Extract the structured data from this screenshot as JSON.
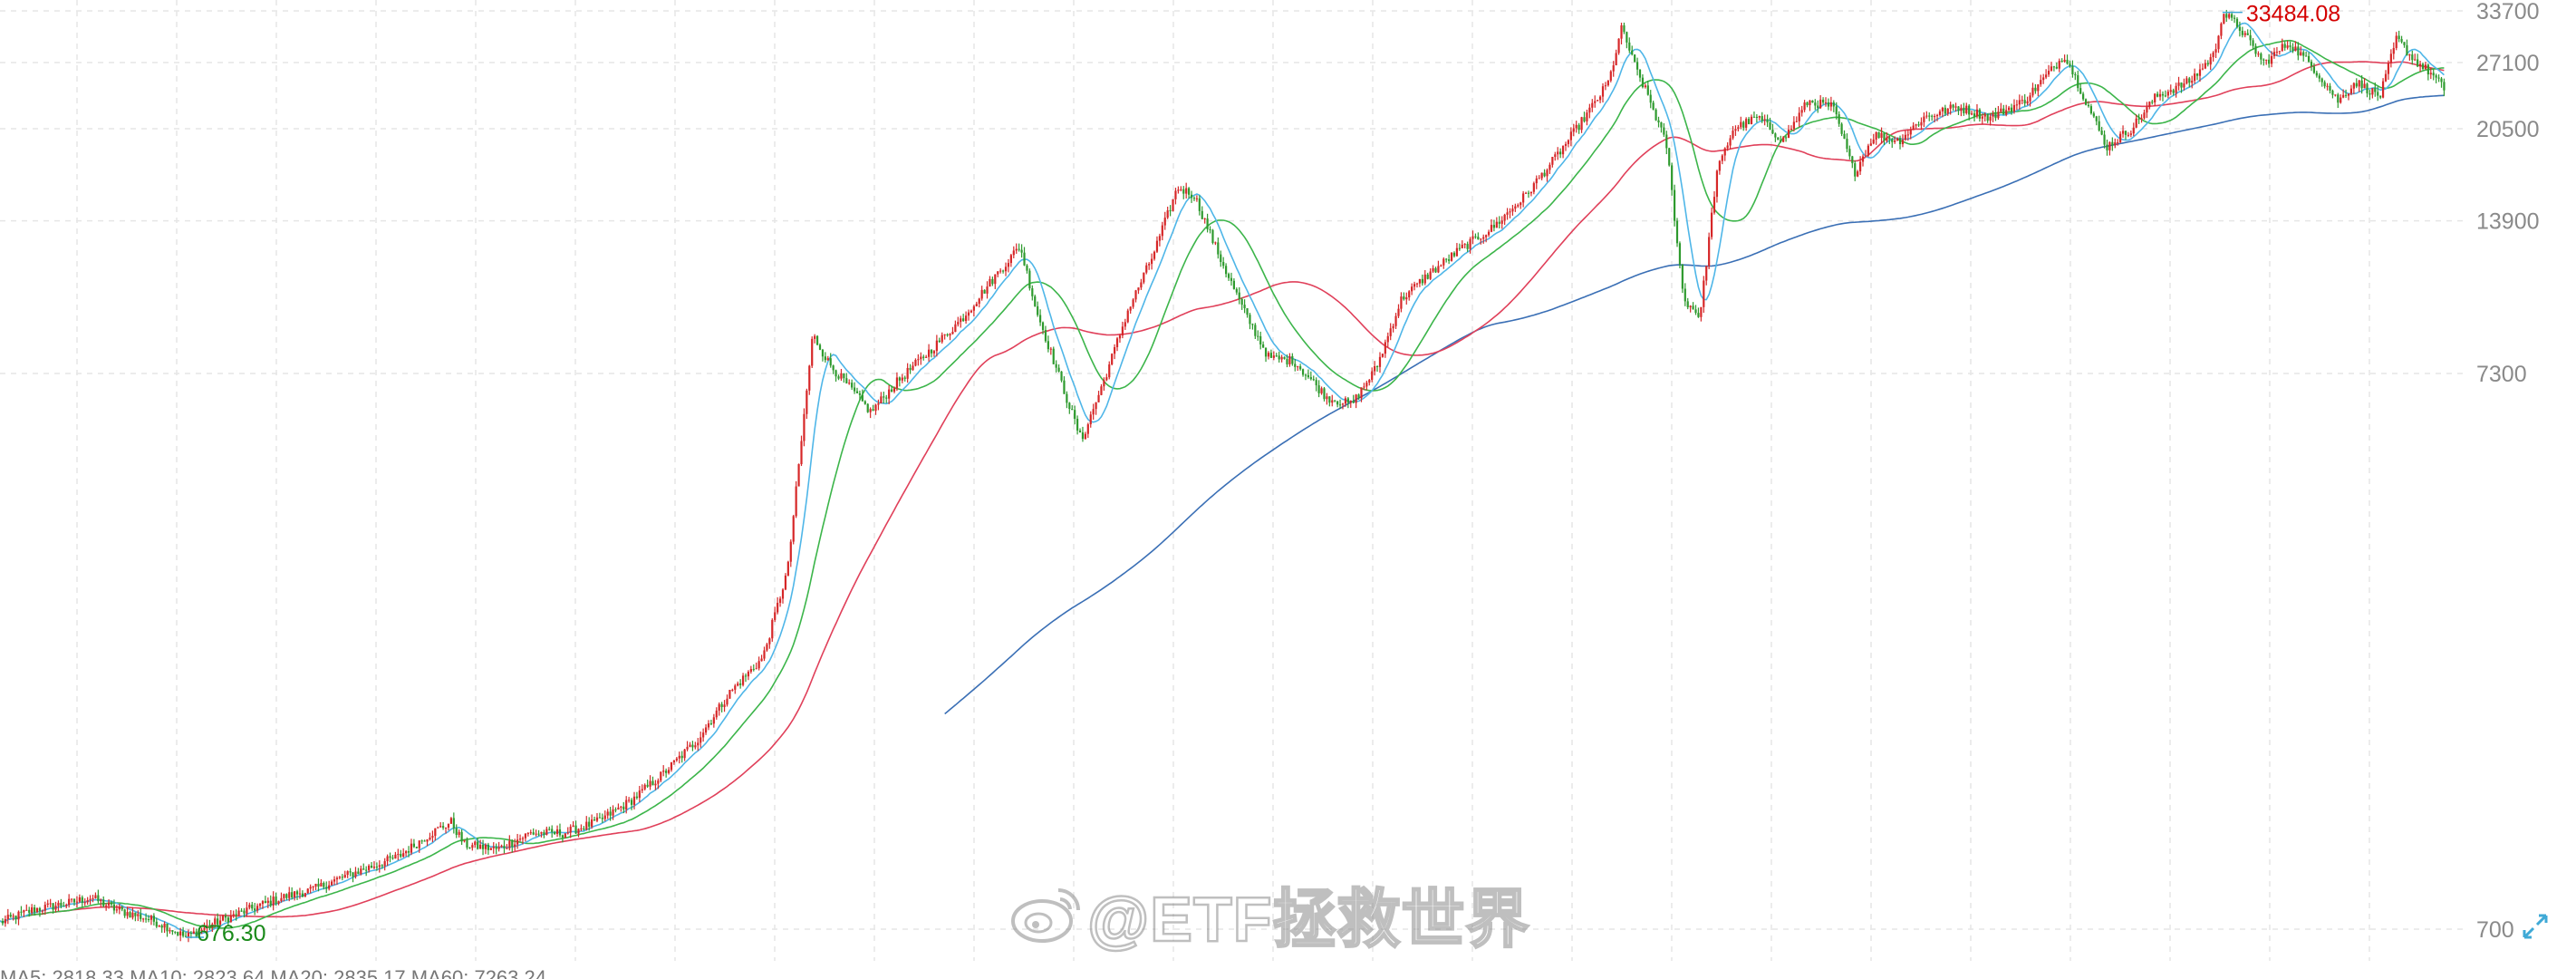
{
  "chart_data": {
    "type": "line",
    "chart_style": "candlestick with moving averages",
    "scale": "log",
    "y_axis_side": "right",
    "ylim": [
      700,
      33700
    ],
    "y_ticks": [
      "33700",
      "27100",
      "20500",
      "13900",
      "7300",
      "700"
    ],
    "grid": true,
    "annotations": {
      "max_label": "33484.08",
      "min_label": "676.30"
    },
    "colors": {
      "candle_up": "#d62728",
      "candle_down": "#2e9a2e",
      "ma_short": "#4fb6e8",
      "ma_mid": "#3cb54a",
      "ma_long": "#e0405a",
      "ma_longest": "#3a6fb5",
      "grid": "#e6e6e6",
      "axis_text": "#8a8a8a",
      "max_text": "#d40000",
      "min_text": "#1a8a1a"
    },
    "price_path": [
      [
        0,
        720
      ],
      [
        20,
        760
      ],
      [
        40,
        780
      ],
      [
        55,
        800
      ],
      [
        70,
        760
      ],
      [
        90,
        730
      ],
      [
        100,
        710
      ],
      [
        112,
        676.3
      ],
      [
        130,
        720
      ],
      [
        150,
        760
      ],
      [
        170,
        800
      ],
      [
        190,
        830
      ],
      [
        210,
        880
      ],
      [
        240,
        950
      ],
      [
        260,
        1050
      ],
      [
        272,
        1100
      ],
      [
        280,
        1000
      ],
      [
        300,
        980
      ],
      [
        320,
        1050
      ],
      [
        340,
        1050
      ],
      [
        360,
        1100
      ],
      [
        380,
        1200
      ],
      [
        400,
        1350
      ],
      [
        420,
        1550
      ],
      [
        440,
        1900
      ],
      [
        460,
        2200
      ],
      [
        475,
        3200
      ],
      [
        490,
        8600
      ],
      [
        500,
        7600
      ],
      [
        510,
        7000
      ],
      [
        525,
        6200
      ],
      [
        540,
        7000
      ],
      [
        560,
        8000
      ],
      [
        580,
        9200
      ],
      [
        600,
        11000
      ],
      [
        615,
        12500
      ],
      [
        625,
        9500
      ],
      [
        640,
        7000
      ],
      [
        652,
        5500
      ],
      [
        665,
        7000
      ],
      [
        680,
        9500
      ],
      [
        695,
        12000
      ],
      [
        710,
        16000
      ],
      [
        720,
        15500
      ],
      [
        735,
        12000
      ],
      [
        750,
        9500
      ],
      [
        765,
        7800
      ],
      [
        780,
        7700
      ],
      [
        800,
        6600
      ],
      [
        815,
        6400
      ],
      [
        830,
        7500
      ],
      [
        845,
        10000
      ],
      [
        860,
        11000
      ],
      [
        880,
        12300
      ],
      [
        900,
        13500
      ],
      [
        920,
        15500
      ],
      [
        940,
        18500
      ],
      [
        960,
        22500
      ],
      [
        970,
        25000
      ],
      [
        978,
        31500
      ],
      [
        985,
        27000
      ],
      [
        995,
        23000
      ],
      [
        1005,
        19000
      ],
      [
        1015,
        10000
      ],
      [
        1025,
        9300
      ],
      [
        1035,
        17000
      ],
      [
        1045,
        20500
      ],
      [
        1060,
        21500
      ],
      [
        1075,
        19500
      ],
      [
        1090,
        23000
      ],
      [
        1105,
        22500
      ],
      [
        1118,
        17000
      ],
      [
        1130,
        20000
      ],
      [
        1145,
        19500
      ],
      [
        1160,
        21500
      ],
      [
        1180,
        22500
      ],
      [
        1200,
        21500
      ],
      [
        1220,
        23000
      ],
      [
        1245,
        28000
      ],
      [
        1255,
        24000
      ],
      [
        1270,
        19000
      ],
      [
        1285,
        20500
      ],
      [
        1300,
        23500
      ],
      [
        1320,
        25000
      ],
      [
        1335,
        28000
      ],
      [
        1340,
        33484.08
      ],
      [
        1350,
        31500
      ],
      [
        1365,
        27000
      ],
      [
        1380,
        29500
      ],
      [
        1395,
        26500
      ],
      [
        1410,
        23000
      ],
      [
        1420,
        25000
      ],
      [
        1435,
        23500
      ],
      [
        1445,
        30000
      ],
      [
        1455,
        27500
      ],
      [
        1465,
        26000
      ],
      [
        1475,
        24000
      ]
    ]
  },
  "watermark": {
    "text": "@ETF拯救世界"
  },
  "legend": {
    "text": "MA5: 2818.33 MA10: 2823.64 MA20: 2835.17 MA60: 7263.24"
  },
  "controls": {
    "expand_icon": "expand-icon"
  }
}
